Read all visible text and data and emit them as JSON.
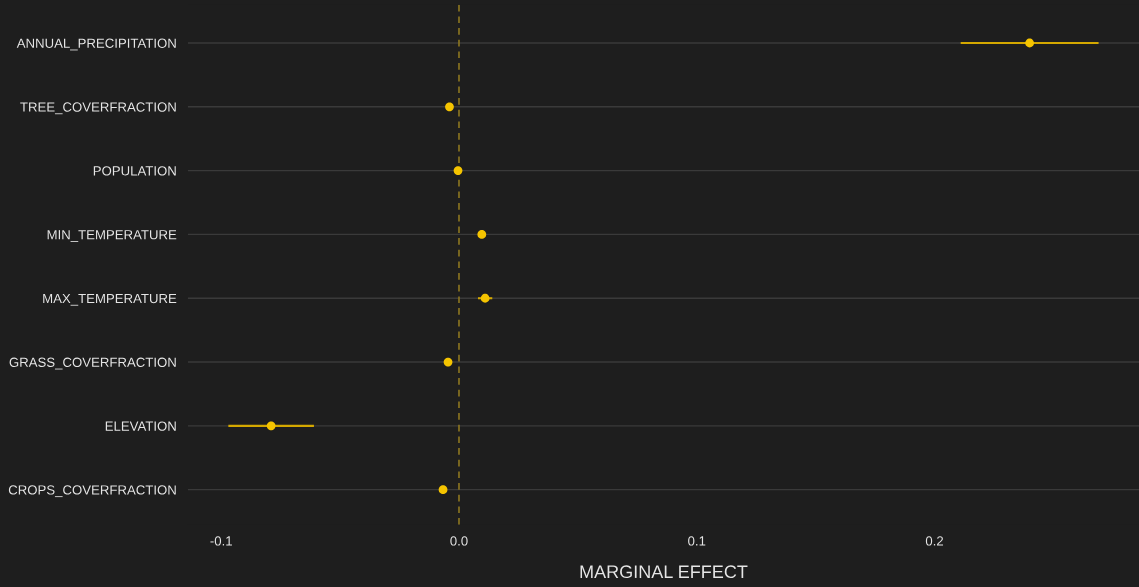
{
  "chart_data": {
    "type": "scatter",
    "orientation": "horizontal",
    "xlabel": "MARGINAL EFFECT",
    "categories": [
      "ANNUAL_PRECIPITATION",
      "TREE_COVERFRACTION",
      "POPULATION",
      "MIN_TEMPERATURE",
      "MAX_TEMPERATURE",
      "GRASS_COVERFRACTION",
      "ELEVATION",
      "CROPS_COVERFRACTION"
    ],
    "values": [
      0.24,
      -0.004,
      -0.0004,
      0.0096,
      0.011,
      -0.0046,
      -0.079,
      -0.0067
    ],
    "errors": [
      0.029,
      null,
      null,
      null,
      0.003,
      null,
      0.018,
      null
    ],
    "color": "#f5c400",
    "xlim": [
      -0.114,
      0.286
    ],
    "xticks": [
      -0.1,
      {
        "value": 0,
        "label": "0.0"
      },
      0.1,
      0.2
    ],
    "ref_lines": [
      {
        "axis": "x",
        "value": 0,
        "color": "#8a7420",
        "line_style": "dashed"
      }
    ],
    "grid": "y",
    "marker": "circle"
  }
}
